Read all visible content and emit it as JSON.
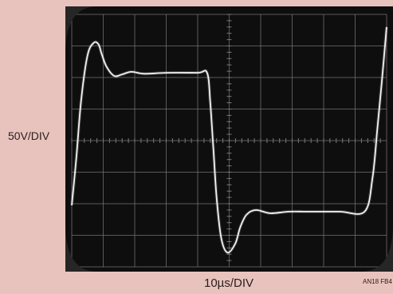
{
  "labels": {
    "vertical_scale": "50V/DIV",
    "horizontal_scale": "10µs/DIV",
    "figure_code": "AN18 FB4"
  },
  "chart_data": {
    "type": "line",
    "title": "",
    "xlabel": "10µs/DIV",
    "ylabel": "50V/DIV",
    "grid": true,
    "x_divisions": 10,
    "y_divisions": 8,
    "xlim": [
      0,
      10
    ],
    "ylim": [
      -4,
      4
    ],
    "colors": {
      "screen": "#0e0e0e",
      "grid": "#7a7a7a",
      "trace": "#f2f2f2",
      "background": "#e8c3bd"
    },
    "series": [
      {
        "values_x": [
          0.0,
          0.15,
          0.3,
          0.5,
          0.7,
          0.85,
          0.95,
          1.1,
          1.35,
          1.6,
          1.9,
          2.3,
          3.0,
          4.0,
          4.3,
          4.4,
          4.5,
          4.6,
          4.75,
          4.95,
          5.2,
          5.35,
          5.55,
          5.85,
          6.3,
          6.9,
          7.5,
          8.5,
          9.3,
          9.55,
          9.7,
          9.85,
          10.0
        ],
        "values_y": [
          -2.05,
          -0.5,
          1.3,
          2.7,
          3.1,
          3.05,
          2.75,
          2.35,
          2.05,
          2.1,
          2.18,
          2.12,
          2.15,
          2.15,
          2.15,
          1.2,
          -0.3,
          -1.8,
          -3.1,
          -3.55,
          -3.25,
          -2.75,
          -2.35,
          -2.2,
          -2.3,
          -2.25,
          -2.25,
          -2.25,
          -2.25,
          -1.2,
          0.3,
          1.9,
          3.6
        ]
      }
    ]
  }
}
